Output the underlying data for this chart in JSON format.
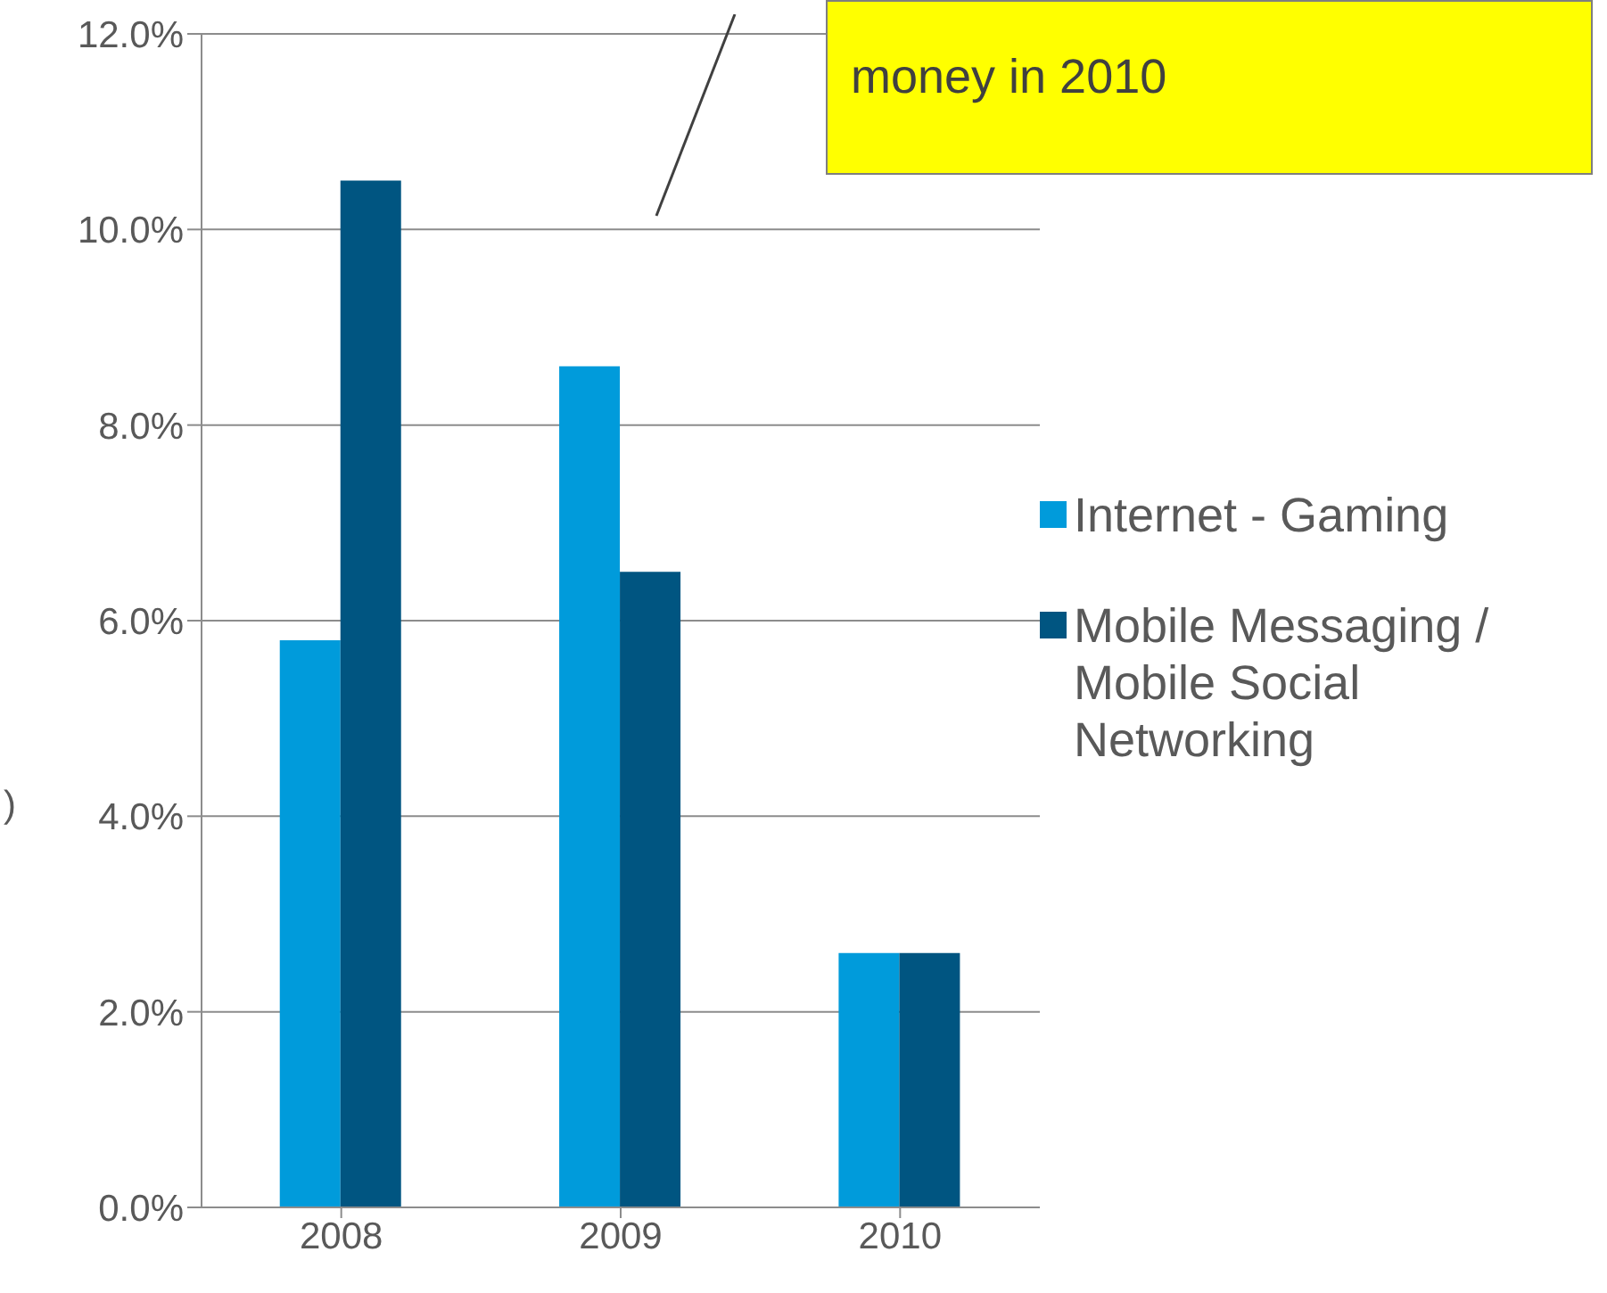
{
  "chart_data": {
    "type": "bar",
    "ylabel": ")",
    "annotations": [
      "money in 2010"
    ],
    "categories": [
      "2008",
      "2009",
      "2010"
    ],
    "series": [
      {
        "name": "Internet - Gaming",
        "color": "#009bdb",
        "values": [
          5.8,
          8.6,
          2.6
        ]
      },
      {
        "name": "Mobile Messaging / Mobile Social Networking",
        "color": "#005581",
        "values": [
          10.5,
          6.5,
          2.6
        ]
      }
    ],
    "ylim": [
      0,
      12
    ],
    "yticks": [
      {
        "value": 0,
        "label": "0.0%"
      },
      {
        "value": 2,
        "label": "2.0%"
      },
      {
        "value": 4,
        "label": "4.0%"
      },
      {
        "value": 6,
        "label": "6.0%"
      },
      {
        "value": 8,
        "label": "8.0%"
      },
      {
        "value": 10,
        "label": "10.0%"
      },
      {
        "value": 12,
        "label": "12.0%"
      }
    ],
    "grid": "y",
    "legend": "right"
  }
}
